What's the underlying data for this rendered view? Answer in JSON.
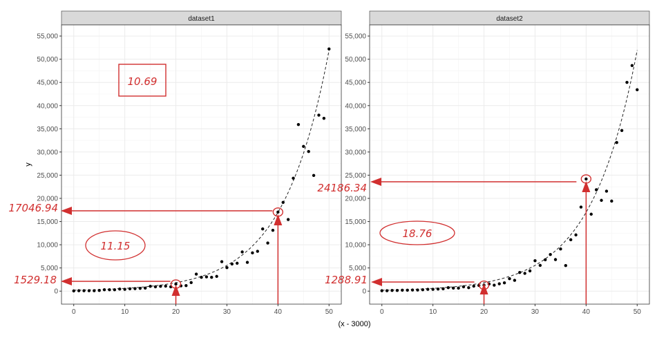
{
  "chart_data": {
    "type": "scatter",
    "xlabel": "(x - 3000)",
    "ylabel": "y",
    "xlim": [
      -2.4,
      52.4
    ],
    "ylim": [
      -2800,
      57400
    ],
    "x_ticks": [
      "0",
      "10",
      "20",
      "30",
      "40",
      "50"
    ],
    "y_ticks": [
      "0",
      "5,000",
      "10,000",
      "15,000",
      "20,000",
      "25,000",
      "30,000",
      "35,000",
      "40,000",
      "45,000",
      "50,000",
      "55,000"
    ],
    "grid": true,
    "fit_line": {
      "style": "dashed",
      "model": "exponential",
      "a": 195,
      "b": 0.1117
    },
    "panels": [
      {
        "strip": "dataset1",
        "x": [
          0,
          1,
          2,
          3,
          4,
          5,
          6,
          7,
          8,
          9,
          10,
          11,
          12,
          13,
          14,
          15,
          16,
          17,
          18,
          19,
          20,
          21,
          22,
          23,
          24,
          25,
          26,
          27,
          28,
          29,
          30,
          31,
          32,
          33,
          34,
          35,
          36,
          37,
          38,
          39,
          40,
          41,
          42,
          43,
          44,
          45,
          46,
          47,
          48,
          49,
          50
        ],
        "y": [
          50,
          100,
          100,
          100,
          100,
          150,
          300,
          300,
          300,
          450,
          400,
          500,
          550,
          600,
          650,
          1040,
          940,
          1040,
          1090,
          940,
          1529,
          1140,
          1190,
          1840,
          3680,
          2980,
          3080,
          2980,
          3180,
          6360,
          5070,
          5860,
          6010,
          8450,
          6210,
          8250,
          8590,
          13410,
          10380,
          13110,
          17047,
          19130,
          15450,
          24340,
          35920,
          31200,
          30100,
          24940,
          37950,
          37260,
          52210
        ],
        "annotations": {
          "box": "10.69",
          "ellipse": "11.15",
          "label_high": "17046.94",
          "label_low": "1529.18"
        }
      },
      {
        "strip": "dataset2",
        "x": [
          0,
          1,
          2,
          3,
          4,
          5,
          6,
          7,
          8,
          9,
          10,
          11,
          12,
          13,
          14,
          15,
          16,
          17,
          18,
          19,
          20,
          21,
          22,
          23,
          24,
          25,
          26,
          27,
          28,
          29,
          30,
          31,
          32,
          33,
          34,
          35,
          36,
          37,
          38,
          39,
          40,
          41,
          42,
          43,
          44,
          45,
          46,
          47,
          48,
          49,
          50
        ],
        "y": [
          100,
          100,
          150,
          150,
          200,
          200,
          250,
          250,
          300,
          400,
          400,
          450,
          500,
          750,
          650,
          650,
          940,
          750,
          1090,
          1240,
          1289,
          1540,
          1290,
          1590,
          1790,
          2680,
          2330,
          4020,
          3830,
          4370,
          6560,
          5560,
          6760,
          7900,
          6810,
          9090,
          5510,
          11080,
          12120,
          18130,
          24186,
          16590,
          21860,
          19570,
          21560,
          19420,
          32040,
          34630,
          45010,
          48630,
          43420
        ],
        "annotations": {
          "ellipse": "18.76",
          "label_high": "24186.34",
          "label_low": "1288.91"
        }
      }
    ]
  },
  "colors": {
    "points": "#000000",
    "annotation": "#d12f2f",
    "strip_bg": "#d9d9d9",
    "grid": "#ebebeb"
  }
}
